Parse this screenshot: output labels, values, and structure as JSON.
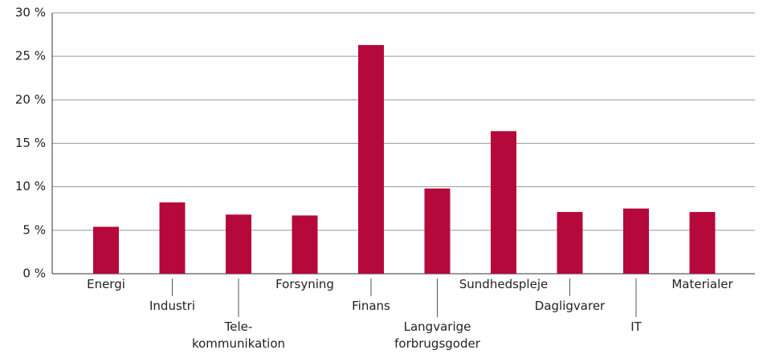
{
  "chart_data": {
    "type": "bar",
    "categories": [
      "Energi",
      "Industri",
      "Tele-\nkommunikation",
      "Forsyning",
      "Finans",
      "Langvarige\nforbrugsgoder",
      "Sundhedspleje",
      "Dagligvarer",
      "IT",
      "Materialer"
    ],
    "values": [
      5.4,
      8.2,
      6.8,
      6.7,
      26.3,
      9.8,
      16.4,
      7.1,
      7.5,
      7.1
    ],
    "color": "#b5093b",
    "ylim": [
      0,
      30
    ],
    "yticks": [
      {
        "value": 0,
        "label": "0 %"
      },
      {
        "value": 5,
        "label": "5 %"
      },
      {
        "value": 10,
        "label": "10 %"
      },
      {
        "value": 15,
        "label": "15 %"
      },
      {
        "value": 20,
        "label": "20 %"
      },
      {
        "value": 25,
        "label": "25 %"
      },
      {
        "value": 30,
        "label": "30 %"
      }
    ],
    "grid": true
  }
}
